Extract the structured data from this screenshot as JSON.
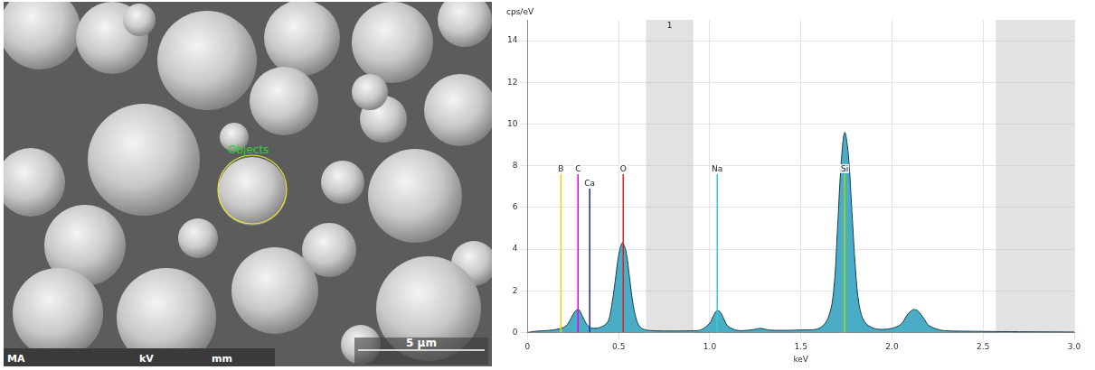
{
  "micrograph": {
    "annotation": "Objects",
    "scale_bar": "5 µm",
    "footer": [
      "MA",
      "kV",
      "mm"
    ]
  },
  "chart_data": {
    "type": "line",
    "y_label": "cps/eV",
    "x_label": "keV",
    "x": [
      0,
      0.04,
      0.08,
      0.12,
      0.16,
      0.2,
      0.22,
      0.24,
      0.26,
      0.28,
      0.3,
      0.32,
      0.34,
      0.36,
      0.4,
      0.44,
      0.46,
      0.48,
      0.5,
      0.52,
      0.54,
      0.56,
      0.58,
      0.6,
      0.62,
      0.65,
      0.7,
      0.8,
      0.9,
      0.95,
      1.0,
      1.02,
      1.04,
      1.06,
      1.08,
      1.1,
      1.15,
      1.2,
      1.25,
      1.28,
      1.32,
      1.4,
      1.5,
      1.6,
      1.65,
      1.68,
      1.7,
      1.72,
      1.74,
      1.76,
      1.78,
      1.8,
      1.82,
      1.85,
      1.9,
      1.95,
      2.0,
      2.05,
      2.08,
      2.1,
      2.12,
      2.14,
      2.16,
      2.18,
      2.2,
      2.25,
      2.3,
      2.4,
      2.5,
      2.6,
      2.8,
      3.0
    ],
    "values": [
      0,
      0.05,
      0.08,
      0.1,
      0.15,
      0.25,
      0.4,
      0.7,
      1.0,
      1.1,
      0.8,
      0.45,
      0.25,
      0.2,
      0.25,
      0.5,
      1.2,
      2.4,
      3.7,
      4.3,
      3.9,
      2.6,
      1.3,
      0.55,
      0.25,
      0.12,
      0.08,
      0.07,
      0.08,
      0.12,
      0.45,
      0.8,
      1.05,
      0.95,
      0.6,
      0.3,
      0.1,
      0.1,
      0.15,
      0.2,
      0.12,
      0.1,
      0.12,
      0.2,
      0.7,
      2.0,
      4.8,
      8.0,
      9.6,
      8.6,
      5.8,
      3.0,
      1.3,
      0.5,
      0.2,
      0.15,
      0.2,
      0.4,
      0.8,
      1.0,
      1.1,
      1.05,
      0.85,
      0.6,
      0.35,
      0.15,
      0.08,
      0.06,
      0.05,
      0.04,
      0.03,
      0.02
    ],
    "color": "#4bacc6",
    "xlim": [
      0,
      3
    ],
    "xticks": [
      0,
      0.5,
      {
        "value": 1,
        "label": "1.0"
      },
      1.5,
      {
        "value": 2,
        "label": "2.0"
      },
      2.5,
      {
        "value": 3,
        "label": "3.0"
      }
    ],
    "ylim": [
      0,
      15
    ],
    "yticks": [
      0,
      2,
      4,
      6,
      8,
      10,
      12,
      14
    ],
    "grid": true,
    "element_lines": [
      {
        "name": "B",
        "x": 0.183,
        "height": 7.6,
        "color": "#e8d800"
      },
      {
        "name": "C",
        "x": 0.277,
        "height": 7.6,
        "color": "#e000e0"
      },
      {
        "name": "Ca",
        "x": 0.341,
        "height": 6.9,
        "color": "#2020c0"
      },
      {
        "name": "O",
        "x": 0.525,
        "height": 7.6,
        "color": "#e02020"
      },
      {
        "name": "Na",
        "x": 1.041,
        "height": 7.6,
        "color": "#30d0d0"
      },
      {
        "name": "Si",
        "x": 1.74,
        "height": 7.6,
        "color": "#a8d800"
      }
    ],
    "regions": [
      {
        "from": 0.65,
        "to": 0.91,
        "label": "1"
      },
      {
        "from": 2.57,
        "to": 3.0
      }
    ]
  }
}
